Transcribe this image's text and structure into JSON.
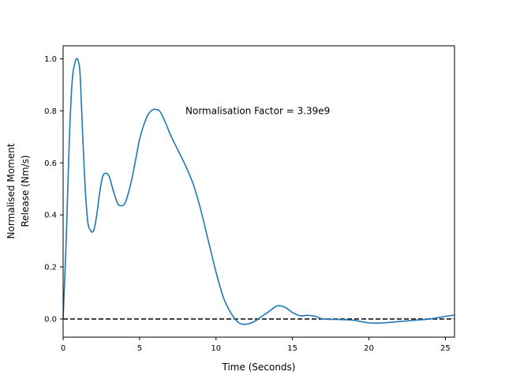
{
  "chart_data": {
    "type": "line",
    "title": "",
    "xlabel": "Time (Seconds)",
    "ylabel_lines": [
      "Normalised Moment",
      "Release (Nm/s)"
    ],
    "xlim": [
      0,
      25.6
    ],
    "ylim": [
      -0.07,
      1.05
    ],
    "xticks": [
      0,
      5,
      10,
      15,
      20,
      25
    ],
    "yticks": [
      0.0,
      0.2,
      0.4,
      0.6,
      0.8,
      1.0
    ],
    "xtick_labels": [
      "0",
      "5",
      "10",
      "15",
      "20",
      "25"
    ],
    "ytick_labels": [
      "0.0",
      "0.2",
      "0.4",
      "0.6",
      "0.8",
      "1.0"
    ],
    "annotation": {
      "text": "Normalisation Factor = 3.39e9",
      "x": 8.0,
      "y": 0.8
    },
    "reference_line": {
      "y": 0.0,
      "style": "dashed",
      "color": "#000000"
    },
    "line_color": "#1f77b4",
    "grid": false,
    "series": [
      {
        "x": [
          0,
          0.2,
          0.4,
          0.6,
          0.8,
          0.9,
          1.0,
          1.1,
          1.2,
          1.4,
          1.6,
          1.8,
          2.0,
          2.2,
          2.4,
          2.6,
          2.8,
          3.0,
          3.2,
          3.4,
          3.6,
          3.8,
          4.0,
          4.2,
          4.5,
          4.8,
          5.0,
          5.3,
          5.6,
          5.9,
          6.1,
          6.3,
          6.5,
          6.8,
          7.0,
          7.5,
          8.0,
          8.5,
          9.0,
          9.5,
          10.0,
          10.5,
          11.0,
          11.5,
          12.0,
          12.5,
          13.0,
          13.5,
          14.0,
          14.5,
          15.0,
          15.5,
          16.0,
          16.5,
          17.0,
          18.0,
          19.0,
          20.0,
          21.0,
          22.0,
          23.0,
          24.0,
          25.0,
          25.6
        ],
        "y": [
          0.0,
          0.3,
          0.68,
          0.92,
          0.99,
          1.0,
          0.99,
          0.95,
          0.82,
          0.55,
          0.38,
          0.34,
          0.34,
          0.4,
          0.49,
          0.55,
          0.56,
          0.55,
          0.51,
          0.47,
          0.44,
          0.435,
          0.44,
          0.47,
          0.54,
          0.63,
          0.69,
          0.75,
          0.79,
          0.805,
          0.805,
          0.8,
          0.78,
          0.74,
          0.71,
          0.65,
          0.59,
          0.52,
          0.42,
          0.3,
          0.18,
          0.08,
          0.02,
          -0.015,
          -0.02,
          -0.01,
          0.01,
          0.03,
          0.05,
          0.045,
          0.025,
          0.012,
          0.014,
          0.01,
          0.0,
          -0.002,
          -0.005,
          -0.015,
          -0.015,
          -0.01,
          -0.005,
          0.0,
          0.01,
          0.015
        ]
      }
    ]
  }
}
